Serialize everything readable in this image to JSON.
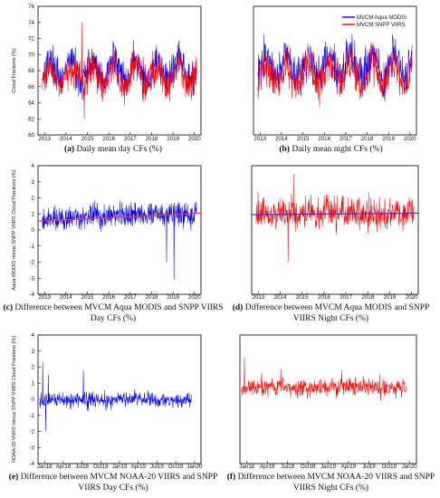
{
  "colors": {
    "blue": "#0000ff",
    "red": "#ff0000",
    "trend_red": "#ff3333",
    "trend_blue": "#3333ff",
    "frame": "#000000"
  },
  "chart_data": [
    {
      "id": "a",
      "type": "line",
      "ylabel": "Cloud Fractions (%)",
      "xticks": [
        "2013",
        "2014",
        "2015",
        "2016",
        "2017",
        "2018",
        "2019",
        "2020"
      ],
      "yticks": [
        "60",
        "62",
        "64",
        "66",
        "68",
        "70",
        "72",
        "74",
        "76"
      ],
      "xlim": [
        2013,
        2020
      ],
      "ylim": [
        60,
        76
      ],
      "caption_label": "(a)",
      "caption_text": "Daily mean day CFs (%)",
      "series": [
        {
          "color": "blue",
          "start": 2012.9,
          "end": 2020.1,
          "mean": 68.0,
          "amplitude": 1.3,
          "noise": 1.6
        },
        {
          "color": "red",
          "start": 2012.9,
          "end": 2020.1,
          "mean": 67.3,
          "amplitude": 1.2,
          "noise": 1.5,
          "spikes": [
            [
              2014.75,
              74.0
            ],
            [
              2014.85,
              62.0
            ]
          ]
        }
      ]
    },
    {
      "id": "b",
      "type": "line",
      "xticks": [
        "2013",
        "2014",
        "2015",
        "2016",
        "2017",
        "2018",
        "2019",
        "2020"
      ],
      "xlim": [
        2013,
        2020
      ],
      "ylim": [
        60,
        76
      ],
      "legend": [
        {
          "label": "MVCM Aqua MODIS",
          "color": "blue"
        },
        {
          "label": "MVCM SNPP VIIRS",
          "color": "red"
        }
      ],
      "caption_label": "(b)",
      "caption_text": "Daily mean night CFs (%)",
      "series": [
        {
          "color": "blue",
          "start": 2012.9,
          "end": 2020.1,
          "mean": 68.6,
          "amplitude": 1.5,
          "noise": 1.8
        },
        {
          "color": "red",
          "start": 2012.9,
          "end": 2020.1,
          "mean": 67.5,
          "amplitude": 1.5,
          "noise": 1.7
        }
      ]
    },
    {
      "id": "c",
      "type": "line",
      "ylabel": "Aqua MODIS minus SNPP VIIRS Cloud Fractions (%)",
      "xticks": [
        "2013",
        "2014",
        "2015",
        "2016",
        "2017",
        "2018",
        "2019",
        "2020"
      ],
      "yticks": [
        "-4",
        "-3",
        "-2",
        "-1",
        "0",
        "1",
        "2",
        "3",
        "4"
      ],
      "xlim": [
        2013,
        2020
      ],
      "ylim": [
        -4,
        4
      ],
      "caption_label": "(c)",
      "caption_text": "Difference between MVCM Aqua MODIS and SNPP VIIRS Day CFs (%)",
      "series": [
        {
          "color": "blue",
          "start": 2012.9,
          "end": 2020.1,
          "mean": 0.7,
          "trend": 0.05,
          "amplitude": 0.1,
          "noise": 0.55,
          "spikes": [
            [
              2019.05,
              -3.1
            ],
            [
              2018.7,
              -2.0
            ]
          ]
        }
      ],
      "trend_line": {
        "color": "trend_red",
        "y_start": 0.55,
        "y_end": 1.05
      }
    },
    {
      "id": "d",
      "type": "line",
      "xticks": [
        "2013",
        "2014",
        "2015",
        "2016",
        "2017",
        "2018",
        "2019",
        "2020"
      ],
      "xlim": [
        2013,
        2020
      ],
      "ylim": [
        -4,
        4
      ],
      "caption_label": "(d)",
      "caption_text": "Difference between MVCM Aqua MODIS and SNPP VIIRS Night CFs (%)",
      "series": [
        {
          "color": "red",
          "start": 2012.9,
          "end": 2020.1,
          "mean": 1.0,
          "trend": 0,
          "amplitude": 0.1,
          "noise": 0.7,
          "spikes": [
            [
              2014.35,
              -2.0
            ],
            [
              2014.6,
              3.5
            ]
          ]
        }
      ],
      "trend_line": {
        "color": "trend_blue",
        "y_start": 0.95,
        "y_end": 1.05
      }
    },
    {
      "id": "e",
      "type": "line",
      "ylabel": "NOAA-20 VIIRS minus SNPP VIIRS Cloud Fractions (%)",
      "xticks": [
        "Jan18",
        "Apr18",
        "Jul18",
        "Oct18",
        "Jan19",
        "Apr19",
        "Jul19",
        "Oct19",
        "Jan20"
      ],
      "yticks": [
        "-4",
        "-3",
        "-2",
        "-1",
        "0",
        "1",
        "2",
        "3",
        "4"
      ],
      "xlim": [
        0,
        24
      ],
      "ylim": [
        -4,
        4
      ],
      "caption_label": "(e)",
      "caption_text": "Difference between MVCM NOAA-20 VIIRS and SNPP VIIRS Day CFs (%)",
      "series": [
        {
          "color": "blue",
          "start": -0.8,
          "end": 23.5,
          "mean": -0.05,
          "trend": 0,
          "amplitude": 0.05,
          "noise": 0.35,
          "spikes": [
            [
              -0.3,
              2.3
            ],
            [
              0.2,
              -2.0
            ],
            [
              6.2,
              1.8
            ],
            [
              0.6,
              1.5
            ]
          ]
        }
      ]
    },
    {
      "id": "f",
      "type": "line",
      "xticks": [
        "Jan18",
        "Apr18",
        "Jul18",
        "Oct18",
        "Jan19",
        "Apr19",
        "Jul19",
        "Oct19",
        "Jan20"
      ],
      "xlim": [
        0,
        24
      ],
      "ylim": [
        -4,
        4
      ],
      "caption_label": "(f)",
      "caption_text": "Difference between MVCM NOAA-20 VIIRS and SNPP VIIRS Night CFs (%)",
      "series": [
        {
          "color": "red",
          "start": -0.8,
          "end": 23.5,
          "mean": 0.75,
          "trend": 0,
          "amplitude": 0.05,
          "noise": 0.4,
          "spikes": [
            [
              -0.4,
              2.6
            ],
            [
              5.0,
              1.9
            ],
            [
              14.0,
              1.8
            ]
          ]
        }
      ]
    }
  ]
}
